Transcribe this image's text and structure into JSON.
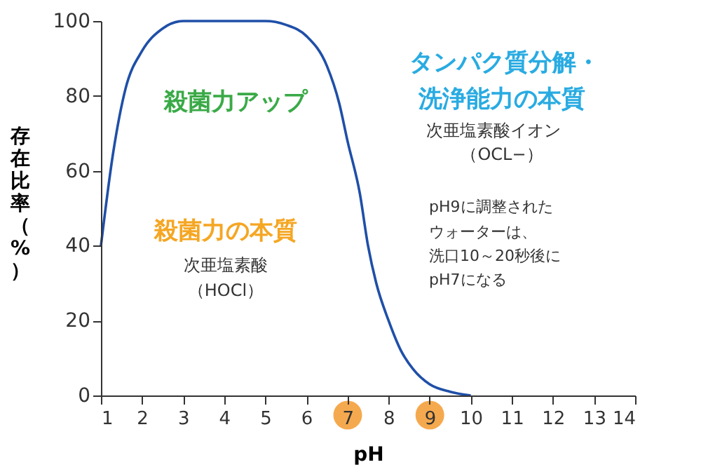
{
  "chart_data": {
    "type": "line",
    "xlabel": "pH",
    "ylabel": "存在比率（%）",
    "x": [
      1.0,
      1.3,
      1.6,
      2.0,
      2.5,
      3.0,
      5.0,
      5.5,
      6.0,
      6.5,
      6.8,
      7.0,
      7.3,
      7.5,
      7.7,
      8.0,
      8.3,
      8.6,
      9.0,
      9.5,
      10.0
    ],
    "series": [
      {
        "color": "#1f4fa8",
        "values": [
          40,
          65,
          82,
          92,
          98,
          100,
          100,
          99,
          96,
          88,
          78,
          68,
          54,
          40,
          30,
          20,
          12,
          7,
          3,
          1,
          0
        ]
      }
    ],
    "xlim": [
      1,
      14
    ],
    "xticks": [
      1,
      2,
      3,
      4,
      5,
      6,
      7,
      8,
      9,
      10,
      11,
      12,
      13,
      14
    ],
    "ylim": [
      0,
      100
    ],
    "yticks": [
      0,
      20,
      40,
      60,
      80,
      100
    ],
    "grid": false,
    "marker": "none",
    "line_style": "solid",
    "annotations": [
      "タンパク質分解・",
      "洗浄能力の本質",
      "次亜塩素酸イオン",
      "（OCL−）",
      "殺菌力アップ",
      "殺菌力の本質",
      "次亜塩素酸",
      "（HOCl）",
      "pH9に調整された",
      "ウォーターは、",
      "洗口10～20秒後に",
      "pH7になる"
    ]
  }
}
